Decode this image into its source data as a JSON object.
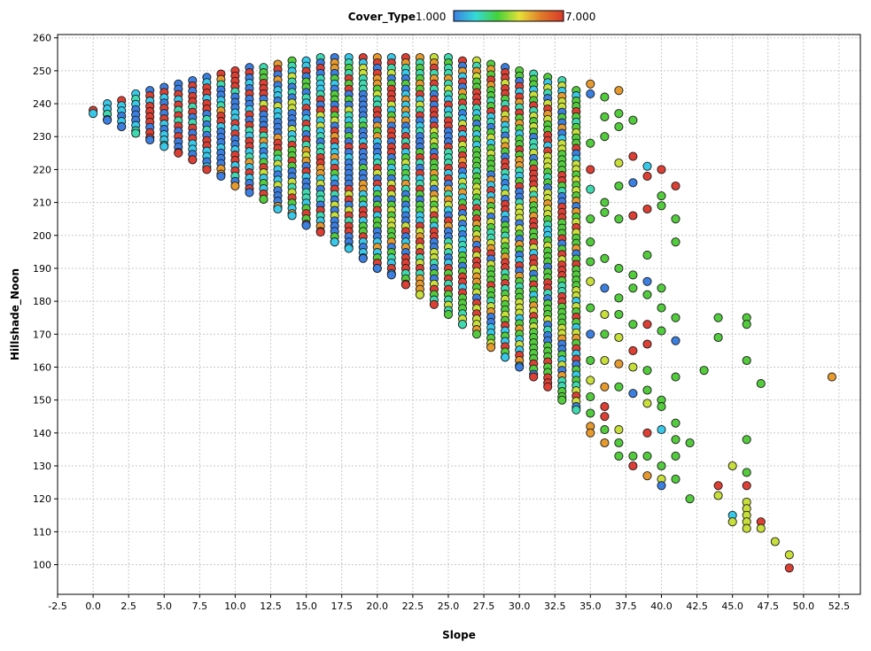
{
  "chart_data": {
    "type": "scatter",
    "xlabel": "Slope",
    "ylabel": "Hillshade_Noon",
    "xlim": [
      -2.5,
      54
    ],
    "ylim": [
      91,
      261
    ],
    "x_ticks": [
      -2.5,
      0,
      2.5,
      5,
      7.5,
      10,
      12.5,
      15,
      17.5,
      20,
      22.5,
      25,
      27.5,
      30,
      32.5,
      35,
      37.5,
      40,
      42.5,
      45,
      47.5,
      50,
      52.5
    ],
    "x_tick_labels": [
      "-2.5",
      "0.0",
      "2.5",
      "5.0",
      "7.5",
      "10.0",
      "12.5",
      "15.0",
      "17.5",
      "20.0",
      "22.5",
      "25.0",
      "27.5",
      "30.0",
      "32.5",
      "35.0",
      "37.5",
      "40.0",
      "42.5",
      "45.0",
      "47.5",
      "50.0",
      "52.5"
    ],
    "y_ticks": [
      100,
      110,
      120,
      130,
      140,
      150,
      160,
      170,
      180,
      190,
      200,
      210,
      220,
      230,
      240,
      250,
      260
    ],
    "grid": true,
    "legend": {
      "title": "Cover_Type",
      "min_label": "1.000",
      "max_label": "7.000",
      "placement": "top",
      "colors": [
        "#3b7fe0",
        "#35d9d9",
        "#44d23a",
        "#e6e038",
        "#e0782a",
        "#d83a2a"
      ]
    },
    "color_dimension": "Cover_Type",
    "point_colors": {
      "1": "#3b7fe0",
      "2": "#38c8e8",
      "3": "#3fd9b0",
      "4": "#52cc3c",
      "5": "#c8de3a",
      "6": "#e69a2e",
      "7": "#dc3f33"
    },
    "columns": [
      {
        "x": 0,
        "ymin": 237,
        "ymax": 238
      },
      {
        "x": 1,
        "ymin": 235,
        "ymax": 240
      },
      {
        "x": 2,
        "ymin": 233,
        "ymax": 241
      },
      {
        "x": 3,
        "ymin": 231,
        "ymax": 243
      },
      {
        "x": 4,
        "ymin": 229,
        "ymax": 244
      },
      {
        "x": 5,
        "ymin": 227,
        "ymax": 245
      },
      {
        "x": 6,
        "ymin": 225,
        "ymax": 246
      },
      {
        "x": 7,
        "ymin": 223,
        "ymax": 247
      },
      {
        "x": 8,
        "ymin": 220,
        "ymax": 248
      },
      {
        "x": 9,
        "ymin": 218,
        "ymax": 249
      },
      {
        "x": 10,
        "ymin": 215,
        "ymax": 250
      },
      {
        "x": 11,
        "ymin": 213,
        "ymax": 251
      },
      {
        "x": 12,
        "ymin": 211,
        "ymax": 251
      },
      {
        "x": 13,
        "ymin": 208,
        "ymax": 252
      },
      {
        "x": 14,
        "ymin": 206,
        "ymax": 253
      },
      {
        "x": 15,
        "ymin": 203,
        "ymax": 253
      },
      {
        "x": 16,
        "ymin": 201,
        "ymax": 254
      },
      {
        "x": 17,
        "ymin": 198,
        "ymax": 254
      },
      {
        "x": 18,
        "ymin": 196,
        "ymax": 254
      },
      {
        "x": 19,
        "ymin": 193,
        "ymax": 254
      },
      {
        "x": 20,
        "ymin": 190,
        "ymax": 254
      },
      {
        "x": 21,
        "ymin": 188,
        "ymax": 254
      },
      {
        "x": 22,
        "ymin": 185,
        "ymax": 254
      },
      {
        "x": 23,
        "ymin": 182,
        "ymax": 254
      },
      {
        "x": 24,
        "ymin": 179,
        "ymax": 254
      },
      {
        "x": 25,
        "ymin": 176,
        "ymax": 254
      },
      {
        "x": 26,
        "ymin": 173,
        "ymax": 253
      },
      {
        "x": 27,
        "ymin": 170,
        "ymax": 253
      },
      {
        "x": 28,
        "ymin": 166,
        "ymax": 252
      },
      {
        "x": 29,
        "ymin": 163,
        "ymax": 251
      },
      {
        "x": 30,
        "ymin": 160,
        "ymax": 250
      },
      {
        "x": 31,
        "ymin": 157,
        "ymax": 249
      },
      {
        "x": 32,
        "ymin": 154,
        "ymax": 248
      },
      {
        "x": 33,
        "ymin": 150,
        "ymax": 247
      },
      {
        "x": 34,
        "ymin": 147,
        "ymax": 244
      }
    ],
    "scatter_points": [
      {
        "x": 35,
        "y": 246,
        "c": 6
      },
      {
        "x": 35,
        "y": 243,
        "c": 1
      },
      {
        "x": 35,
        "y": 228,
        "c": 4
      },
      {
        "x": 35,
        "y": 220,
        "c": 7
      },
      {
        "x": 35,
        "y": 214,
        "c": 3
      },
      {
        "x": 35,
        "y": 205,
        "c": 4
      },
      {
        "x": 35,
        "y": 198,
        "c": 4
      },
      {
        "x": 35,
        "y": 192,
        "c": 4
      },
      {
        "x": 35,
        "y": 186,
        "c": 5
      },
      {
        "x": 35,
        "y": 178,
        "c": 4
      },
      {
        "x": 35,
        "y": 170,
        "c": 1
      },
      {
        "x": 35,
        "y": 162,
        "c": 4
      },
      {
        "x": 35,
        "y": 156,
        "c": 5
      },
      {
        "x": 35,
        "y": 151,
        "c": 4
      },
      {
        "x": 35,
        "y": 146,
        "c": 4
      },
      {
        "x": 35,
        "y": 142,
        "c": 6
      },
      {
        "x": 35,
        "y": 140,
        "c": 6
      },
      {
        "x": 36,
        "y": 242,
        "c": 4
      },
      {
        "x": 36,
        "y": 236,
        "c": 4
      },
      {
        "x": 36,
        "y": 230,
        "c": 4
      },
      {
        "x": 36,
        "y": 210,
        "c": 4
      },
      {
        "x": 36,
        "y": 207,
        "c": 4
      },
      {
        "x": 36,
        "y": 193,
        "c": 4
      },
      {
        "x": 36,
        "y": 184,
        "c": 1
      },
      {
        "x": 36,
        "y": 176,
        "c": 5
      },
      {
        "x": 36,
        "y": 170,
        "c": 4
      },
      {
        "x": 36,
        "y": 162,
        "c": 5
      },
      {
        "x": 36,
        "y": 154,
        "c": 6
      },
      {
        "x": 36,
        "y": 148,
        "c": 7
      },
      {
        "x": 36,
        "y": 145,
        "c": 7
      },
      {
        "x": 36,
        "y": 141,
        "c": 4
      },
      {
        "x": 36,
        "y": 137,
        "c": 6
      },
      {
        "x": 37,
        "y": 244,
        "c": 6
      },
      {
        "x": 37,
        "y": 237,
        "c": 4
      },
      {
        "x": 37,
        "y": 233,
        "c": 4
      },
      {
        "x": 37,
        "y": 222,
        "c": 5
      },
      {
        "x": 37,
        "y": 215,
        "c": 4
      },
      {
        "x": 37,
        "y": 205,
        "c": 4
      },
      {
        "x": 37,
        "y": 190,
        "c": 4
      },
      {
        "x": 37,
        "y": 181,
        "c": 4
      },
      {
        "x": 37,
        "y": 176,
        "c": 4
      },
      {
        "x": 37,
        "y": 169,
        "c": 5
      },
      {
        "x": 37,
        "y": 161,
        "c": 6
      },
      {
        "x": 37,
        "y": 154,
        "c": 4
      },
      {
        "x": 37,
        "y": 141,
        "c": 5
      },
      {
        "x": 37,
        "y": 137,
        "c": 4
      },
      {
        "x": 37,
        "y": 133,
        "c": 4
      },
      {
        "x": 38,
        "y": 235,
        "c": 4
      },
      {
        "x": 38,
        "y": 224,
        "c": 7
      },
      {
        "x": 38,
        "y": 216,
        "c": 1
      },
      {
        "x": 38,
        "y": 206,
        "c": 7
      },
      {
        "x": 38,
        "y": 188,
        "c": 4
      },
      {
        "x": 38,
        "y": 184,
        "c": 4
      },
      {
        "x": 38,
        "y": 173,
        "c": 4
      },
      {
        "x": 38,
        "y": 165,
        "c": 7
      },
      {
        "x": 38,
        "y": 160,
        "c": 5
      },
      {
        "x": 38,
        "y": 152,
        "c": 1
      },
      {
        "x": 38,
        "y": 133,
        "c": 4
      },
      {
        "x": 38,
        "y": 130,
        "c": 7
      },
      {
        "x": 39,
        "y": 221,
        "c": 2
      },
      {
        "x": 39,
        "y": 218,
        "c": 7
      },
      {
        "x": 39,
        "y": 208,
        "c": 7
      },
      {
        "x": 39,
        "y": 194,
        "c": 4
      },
      {
        "x": 39,
        "y": 186,
        "c": 1
      },
      {
        "x": 39,
        "y": 182,
        "c": 4
      },
      {
        "x": 39,
        "y": 173,
        "c": 7
      },
      {
        "x": 39,
        "y": 167,
        "c": 7
      },
      {
        "x": 39,
        "y": 159,
        "c": 4
      },
      {
        "x": 39,
        "y": 153,
        "c": 4
      },
      {
        "x": 39,
        "y": 149,
        "c": 5
      },
      {
        "x": 39,
        "y": 140,
        "c": 7
      },
      {
        "x": 39,
        "y": 133,
        "c": 4
      },
      {
        "x": 39,
        "y": 127,
        "c": 6
      },
      {
        "x": 40,
        "y": 220,
        "c": 7
      },
      {
        "x": 40,
        "y": 212,
        "c": 4
      },
      {
        "x": 40,
        "y": 209,
        "c": 4
      },
      {
        "x": 40,
        "y": 184,
        "c": 4
      },
      {
        "x": 40,
        "y": 178,
        "c": 4
      },
      {
        "x": 40,
        "y": 171,
        "c": 4
      },
      {
        "x": 40,
        "y": 150,
        "c": 4
      },
      {
        "x": 40,
        "y": 148,
        "c": 4
      },
      {
        "x": 40,
        "y": 141,
        "c": 2
      },
      {
        "x": 40,
        "y": 130,
        "c": 4
      },
      {
        "x": 40,
        "y": 126,
        "c": 5
      },
      {
        "x": 40,
        "y": 124,
        "c": 1
      },
      {
        "x": 41,
        "y": 215,
        "c": 7
      },
      {
        "x": 41,
        "y": 205,
        "c": 4
      },
      {
        "x": 41,
        "y": 198,
        "c": 4
      },
      {
        "x": 41,
        "y": 175,
        "c": 4
      },
      {
        "x": 41,
        "y": 168,
        "c": 1
      },
      {
        "x": 41,
        "y": 157,
        "c": 4
      },
      {
        "x": 41,
        "y": 143,
        "c": 4
      },
      {
        "x": 41,
        "y": 138,
        "c": 4
      },
      {
        "x": 41,
        "y": 133,
        "c": 4
      },
      {
        "x": 41,
        "y": 126,
        "c": 4
      },
      {
        "x": 42,
        "y": 137,
        "c": 4
      },
      {
        "x": 42,
        "y": 120,
        "c": 4
      },
      {
        "x": 43,
        "y": 159,
        "c": 4
      },
      {
        "x": 44,
        "y": 175,
        "c": 4
      },
      {
        "x": 44,
        "y": 169,
        "c": 4
      },
      {
        "x": 44,
        "y": 124,
        "c": 7
      },
      {
        "x": 44,
        "y": 121,
        "c": 5
      },
      {
        "x": 45,
        "y": 130,
        "c": 5
      },
      {
        "x": 45,
        "y": 115,
        "c": 2
      },
      {
        "x": 45,
        "y": 113,
        "c": 5
      },
      {
        "x": 46,
        "y": 175,
        "c": 4
      },
      {
        "x": 46,
        "y": 173,
        "c": 4
      },
      {
        "x": 46,
        "y": 162,
        "c": 4
      },
      {
        "x": 46,
        "y": 138,
        "c": 4
      },
      {
        "x": 46,
        "y": 128,
        "c": 4
      },
      {
        "x": 46,
        "y": 124,
        "c": 7
      },
      {
        "x": 46,
        "y": 119,
        "c": 5
      },
      {
        "x": 46,
        "y": 117,
        "c": 5
      },
      {
        "x": 46,
        "y": 115,
        "c": 5
      },
      {
        "x": 46,
        "y": 113,
        "c": 5
      },
      {
        "x": 46,
        "y": 111,
        "c": 5
      },
      {
        "x": 47,
        "y": 155,
        "c": 4
      },
      {
        "x": 47,
        "y": 113,
        "c": 7
      },
      {
        "x": 47,
        "y": 111,
        "c": 5
      },
      {
        "x": 48,
        "y": 107,
        "c": 5
      },
      {
        "x": 49,
        "y": 103,
        "c": 5
      },
      {
        "x": 49,
        "y": 99,
        "c": 7
      },
      {
        "x": 52,
        "y": 157,
        "c": 6
      }
    ]
  }
}
